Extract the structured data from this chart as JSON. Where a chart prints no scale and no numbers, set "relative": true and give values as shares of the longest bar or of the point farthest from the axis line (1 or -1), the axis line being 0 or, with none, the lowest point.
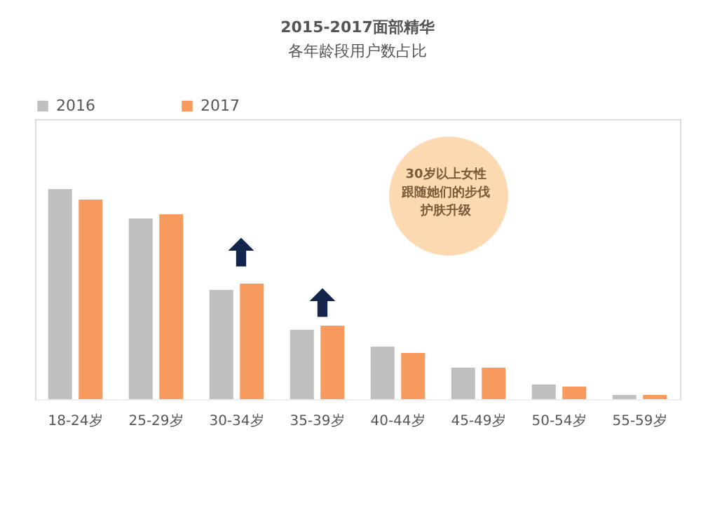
{
  "chart_data": {
    "type": "bar",
    "title": "2015-2017面部精华",
    "subtitle": "各年龄段用户数占比",
    "categories": [
      "18-24岁",
      "25-29岁",
      "30-34岁",
      "35-39岁",
      "40-44岁",
      "45-49岁",
      "50-54岁",
      "55-59岁"
    ],
    "relative": true,
    "series": [
      {
        "name": "2016",
        "color": "#bfbfbf",
        "values": [
          1.0,
          0.86,
          0.52,
          0.33,
          0.25,
          0.15,
          0.07,
          0.02
        ]
      },
      {
        "name": "2017",
        "color": "#f79a5e",
        "values": [
          0.95,
          0.88,
          0.55,
          0.35,
          0.22,
          0.15,
          0.06,
          0.02
        ]
      }
    ],
    "annotations": [
      "30岁以上女性",
      "跟随她们的步伐",
      "护肤升级"
    ],
    "legend": "top",
    "grid": false
  }
}
